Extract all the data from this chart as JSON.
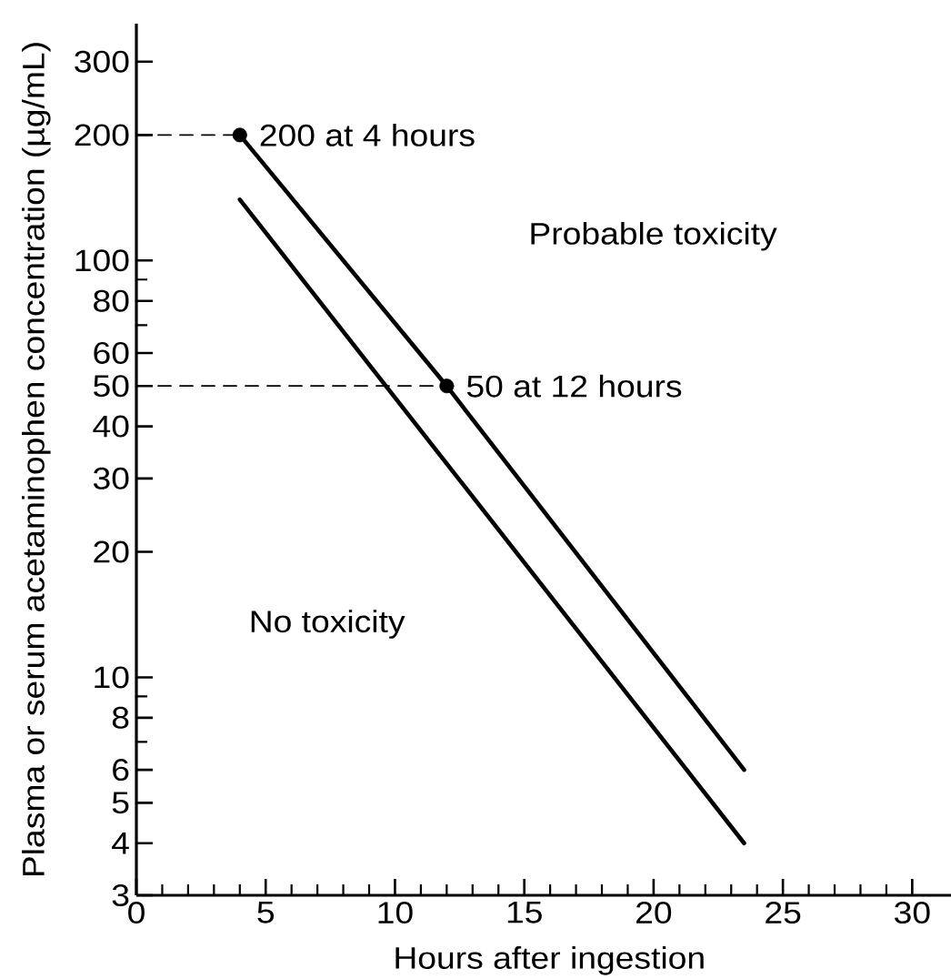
{
  "chart_data": {
    "type": "line",
    "xlabel": "Hours after ingestion",
    "ylabel": "Plasma or serum acetaminophen concentration (µg/mL)",
    "series": [
      {
        "x": [
          4,
          12,
          23.5
        ],
        "values": [
          200,
          50,
          6
        ],
        "color": "#000000"
      },
      {
        "x": [
          4,
          23.5
        ],
        "values": [
          140,
          4
        ],
        "color": "#000000"
      },
      {
        "x": [
          0,
          4
        ],
        "values": [
          200,
          200
        ],
        "color": "#000000",
        "line_style": "dashed"
      },
      {
        "x": [
          0,
          12
        ],
        "values": [
          50,
          50
        ],
        "color": "#000000",
        "line_style": "dashed"
      },
      {
        "type": "scatter",
        "x": [
          4,
          12
        ],
        "values": [
          200,
          50
        ],
        "color": "#000000",
        "marker": "circle"
      }
    ],
    "annotations": [
      {
        "text": "200 at 4 hours",
        "x": 4,
        "y": 200
      },
      {
        "text": "50 at 12 hours",
        "x": 12,
        "y": 50
      },
      "Probable toxicity",
      "No toxicity"
    ],
    "xlim": [
      0,
      31.5
    ],
    "ylim": [
      3,
      370
    ],
    "log": "y",
    "xticks": [
      0,
      {
        "value": 1,
        "label": null
      },
      {
        "value": 2,
        "label": null
      },
      {
        "value": 3,
        "label": null
      },
      {
        "value": 4,
        "label": null
      },
      5,
      {
        "value": 6,
        "label": null
      },
      {
        "value": 7,
        "label": null
      },
      {
        "value": 8,
        "label": null
      },
      {
        "value": 9,
        "label": null
      },
      10,
      {
        "value": 11,
        "label": null
      },
      {
        "value": 12,
        "label": null
      },
      {
        "value": 13,
        "label": null
      },
      {
        "value": 14,
        "label": null
      },
      15,
      {
        "value": 16,
        "label": null
      },
      {
        "value": 17,
        "label": null
      },
      {
        "value": 18,
        "label": null
      },
      {
        "value": 19,
        "label": null
      },
      20,
      {
        "value": 21,
        "label": null
      },
      {
        "value": 22,
        "label": null
      },
      {
        "value": 23,
        "label": null
      },
      {
        "value": 24,
        "label": null
      },
      25,
      {
        "value": 26,
        "label": null
      },
      {
        "value": 27,
        "label": null
      },
      {
        "value": 28,
        "label": null
      },
      {
        "value": 29,
        "label": null
      },
      30
    ],
    "yticks": [
      3,
      4,
      5,
      6,
      {
        "value": 7,
        "label": null
      },
      8,
      {
        "value": 9,
        "label": null
      },
      10,
      20,
      30,
      40,
      50,
      60,
      {
        "value": 70,
        "label": null
      },
      80,
      {
        "value": 90,
        "label": null
      },
      100,
      200,
      300
    ]
  }
}
